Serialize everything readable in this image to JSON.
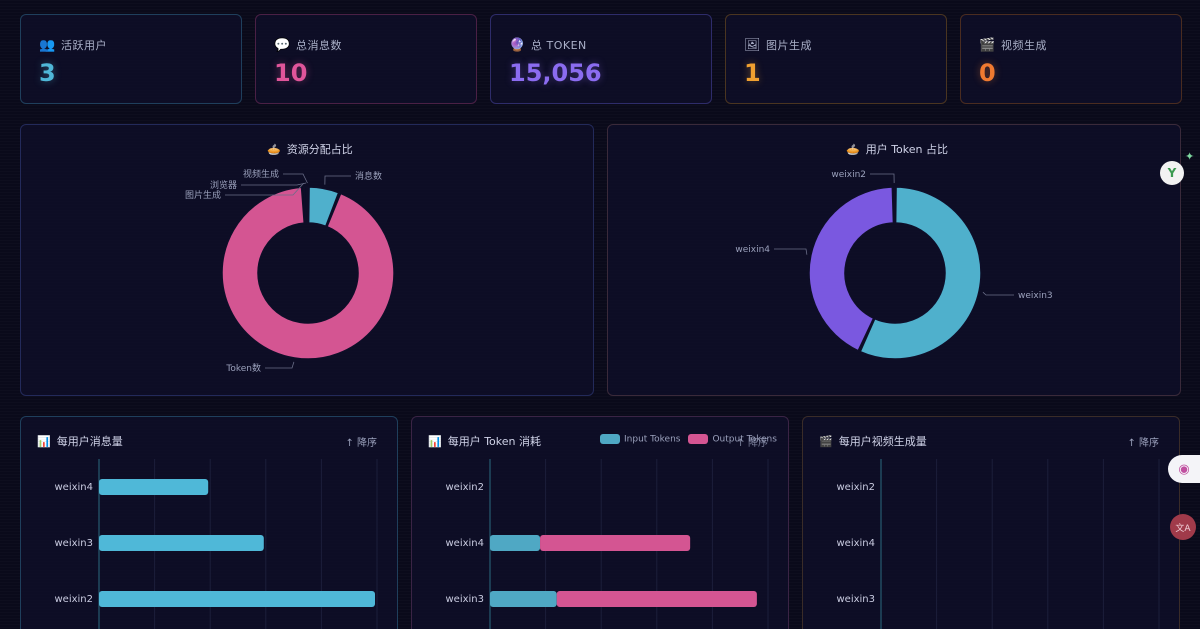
{
  "stats": [
    {
      "icon": "users-icon",
      "glyph": "👥",
      "label": "活跃用户",
      "value": "3",
      "color": "#4fb8d8",
      "border": "#1f3f5c"
    },
    {
      "icon": "message-icon",
      "glyph": "💬",
      "label": "总消息数",
      "value": "10",
      "color": "#e0559a",
      "border": "#4a2045"
    },
    {
      "icon": "crystal-ball-icon",
      "glyph": "🔮",
      "label": "总 TOKEN",
      "value": "15,056",
      "color": "#8b6cf0",
      "border": "#2e2c6a"
    },
    {
      "icon": "image-icon",
      "glyph": "🖼",
      "label": "图片生成",
      "value": "1",
      "color": "#f0a030",
      "border": "#4a3520"
    },
    {
      "icon": "clapper-icon",
      "glyph": "🎬",
      "label": "视频生成",
      "value": "0",
      "color": "#f07a30",
      "border": "#4a2c20"
    }
  ],
  "panels": {
    "resource": {
      "icon": "pie-icon",
      "glyph": "🥧",
      "title": "资源分配占比"
    },
    "user_token": {
      "icon": "pie-icon",
      "glyph": "🥧",
      "title": "用户 Token 占比"
    },
    "messages": {
      "icon": "bar-chart-icon",
      "glyph": "📊",
      "title": "每用户消息量",
      "sort": "↑ 降序"
    },
    "tokens": {
      "icon": "bar-chart-icon",
      "glyph": "📊",
      "title": "每用户 Token 消耗",
      "sort": "↑ 降序"
    },
    "videos": {
      "icon": "clapper-icon",
      "glyph": "🎬",
      "title": "每用户视频生成量",
      "sort": "↑ 降序"
    }
  },
  "chart_data": [
    {
      "type": "pie",
      "variant": "donut",
      "labels": [
        "消息数",
        "Token数",
        "图片生成",
        "浏览器",
        "视频生成"
      ],
      "values": [
        6,
        93,
        0.5,
        0.3,
        0.2
      ],
      "colors": [
        "#4fb0cc",
        "#d45592",
        "#d45592",
        "#d45592",
        "#d45592"
      ]
    },
    {
      "type": "pie",
      "variant": "donut",
      "labels": [
        "weixin3",
        "weixin4",
        "weixin2"
      ],
      "values": [
        57,
        43,
        0.3
      ],
      "colors": [
        "#4fb0cc",
        "#7a58e0",
        "#4fb0cc"
      ]
    },
    {
      "type": "bar",
      "orientation": "horizontal",
      "categories": [
        "weixin4",
        "weixin3",
        "weixin2"
      ],
      "values": [
        2,
        3,
        5
      ],
      "xlim": [
        0,
        5
      ],
      "color": "#4fb8d8"
    },
    {
      "type": "bar",
      "orientation": "horizontal",
      "stacked": true,
      "categories": [
        "weixin2",
        "weixin4",
        "weixin3"
      ],
      "legend": [
        "Input Tokens",
        "Output Tokens"
      ],
      "series": [
        {
          "name": "Input Tokens",
          "values": [
            0,
            900,
            1200
          ],
          "color": "#4fa8c4"
        },
        {
          "name": "Output Tokens",
          "values": [
            0,
            2700,
            3600
          ],
          "color": "#d45592"
        }
      ],
      "xlim": [
        0,
        5000
      ]
    },
    {
      "type": "bar",
      "orientation": "horizontal",
      "categories": [
        "weixin2",
        "weixin4",
        "weixin3"
      ],
      "values": [
        0,
        0,
        0
      ],
      "xlim": [
        0,
        5
      ]
    }
  ],
  "side": {
    "ext1": "Y",
    "ext2": "◉",
    "ext3": "文A"
  }
}
